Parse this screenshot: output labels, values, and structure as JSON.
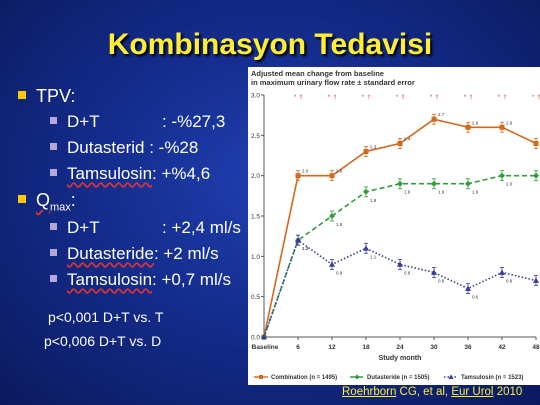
{
  "slide": {
    "title": "Kombinasyon Tedavisi",
    "bullets": {
      "tpv_label": "TPV:",
      "tpv_items": [
        {
          "name": "D+T",
          "value": ": -%27,3"
        },
        {
          "name": "Dutasterid",
          "value": " : -%28"
        },
        {
          "name": "Tamsulosin",
          "value": ": +%4,6"
        }
      ],
      "qmax_q": "Q",
      "qmax_sub": "max",
      "qmax_colon": ":",
      "qmax_items": [
        {
          "name": "D+T",
          "value": ": +2,4 ml/s"
        },
        {
          "name": "Dutasteride",
          "value": ": +2 ml/s"
        },
        {
          "name": "Tamsulosin",
          "value": ": +0,7 ml/s"
        }
      ]
    },
    "pvalues": [
      "p<0,001 D+T vs. T",
      "p<0,006 D+T vs. D"
    ],
    "citation": {
      "authors": "Roehrborn",
      "rest": " CG, et al, ",
      "journal": "Eur Urol",
      "year": " 2010"
    }
  },
  "chart_data": {
    "type": "line",
    "title": "Adjusted mean change from baseline\nin maximum urinary flow rate ± standard error",
    "xlabel": "Study month",
    "ylabel": "",
    "categories": [
      "Baseline",
      "6",
      "12",
      "18",
      "24",
      "30",
      "36",
      "42",
      "48"
    ],
    "ylim": [
      0,
      3.0
    ],
    "yticks": [
      "0.0",
      "0.5",
      "1.0",
      "1.5",
      "2.0",
      "2.5",
      "3.0"
    ],
    "series": [
      {
        "name": "Combination (n = 1495)",
        "color": "#d2691e",
        "marker": "square",
        "dash": "solid",
        "values": [
          0,
          2.0,
          2.0,
          2.3,
          2.4,
          2.7,
          2.6,
          2.6,
          2.4
        ]
      },
      {
        "name": "Dutasteride (n = 1505)",
        "color": "#2e9e3a",
        "marker": "diamond",
        "dash": "dashed",
        "values": [
          0,
          1.2,
          1.5,
          1.8,
          1.9,
          1.9,
          1.9,
          2.0,
          2.0
        ]
      },
      {
        "name": "Tamsulosin (n = 1523)",
        "color": "#3a3aa0",
        "marker": "triangle",
        "dash": "dotted",
        "values": [
          0,
          1.2,
          0.9,
          1.1,
          0.9,
          0.8,
          0.6,
          0.8,
          0.7
        ]
      }
    ],
    "legend": "bottom",
    "significance_markers": true
  }
}
